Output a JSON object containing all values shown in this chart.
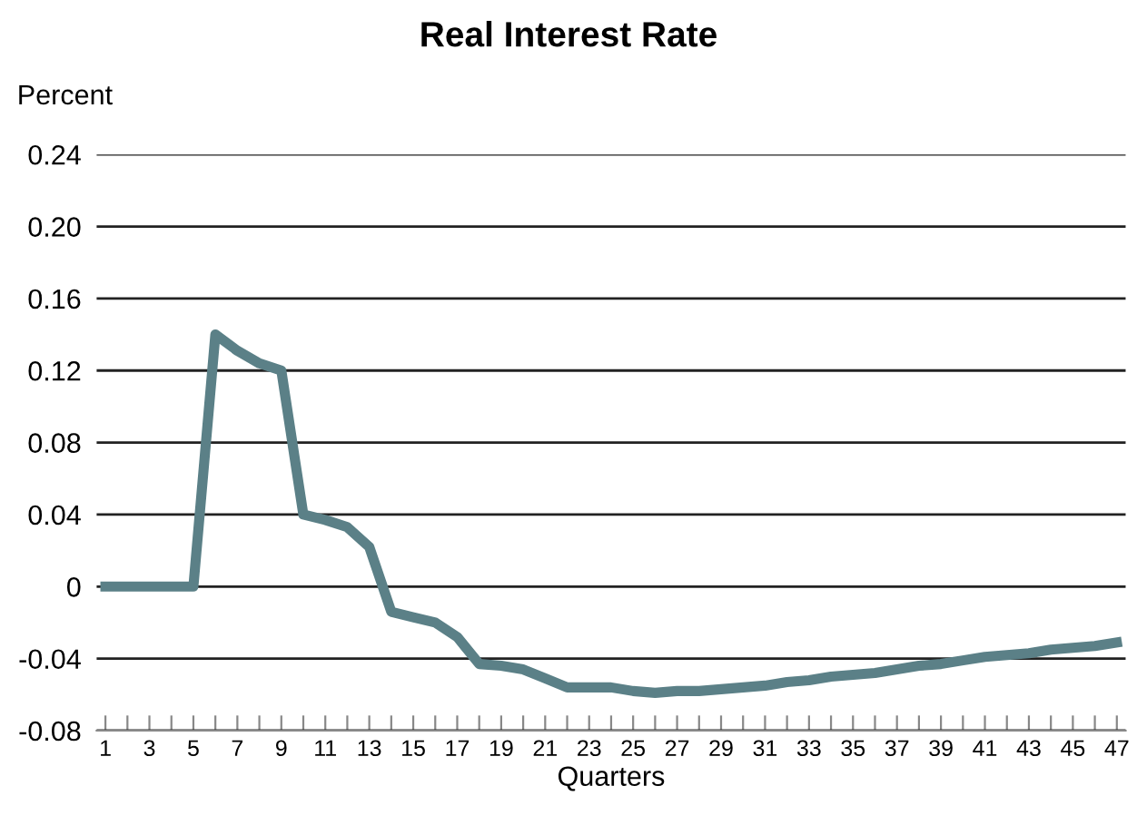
{
  "chart_data": {
    "type": "line",
    "title": "Real Interest Rate",
    "xlabel": "Quarters",
    "ylabel": "Percent",
    "x": [
      1,
      2,
      3,
      4,
      5,
      6,
      7,
      8,
      9,
      10,
      11,
      12,
      13,
      14,
      15,
      16,
      17,
      18,
      19,
      20,
      21,
      22,
      23,
      24,
      25,
      26,
      27,
      28,
      29,
      30,
      31,
      32,
      33,
      34,
      35,
      36,
      37,
      38,
      39,
      40,
      41,
      42,
      43,
      44,
      45,
      46,
      47
    ],
    "series": [
      {
        "color": "#5b8087",
        "values": [
          0,
          0,
          0,
          0,
          0,
          0.14,
          0.131,
          0.124,
          0.12,
          0.04,
          0.037,
          0.033,
          0.022,
          -0.014,
          -0.017,
          -0.02,
          -0.028,
          -0.043,
          -0.044,
          -0.046,
          -0.051,
          -0.056,
          -0.056,
          -0.056,
          -0.058,
          -0.059,
          -0.058,
          -0.058,
          -0.057,
          -0.056,
          -0.055,
          -0.053,
          -0.052,
          -0.05,
          -0.049,
          -0.048,
          -0.046,
          -0.044,
          -0.043,
          -0.041,
          -0.039,
          -0.038,
          -0.037,
          -0.035,
          -0.034,
          -0.033,
          -0.031
        ]
      }
    ],
    "xlim": [
      0.6,
      47.4
    ],
    "ylim": [
      -0.08,
      0.24
    ],
    "xticks": [
      1,
      {
        "value": 2,
        "label": null
      },
      3,
      {
        "value": 4,
        "label": null
      },
      5,
      {
        "value": 6,
        "label": null
      },
      7,
      {
        "value": 8,
        "label": null
      },
      9,
      {
        "value": 10,
        "label": null
      },
      11,
      {
        "value": 12,
        "label": null
      },
      13,
      {
        "value": 14,
        "label": null
      },
      15,
      {
        "value": 16,
        "label": null
      },
      17,
      {
        "value": 18,
        "label": null
      },
      19,
      {
        "value": 20,
        "label": null
      },
      21,
      {
        "value": 22,
        "label": null
      },
      23,
      {
        "value": 24,
        "label": null
      },
      25,
      {
        "value": 26,
        "label": null
      },
      27,
      {
        "value": 28,
        "label": null
      },
      29,
      {
        "value": 30,
        "label": null
      },
      31,
      {
        "value": 32,
        "label": null
      },
      33,
      {
        "value": 34,
        "label": null
      },
      35,
      {
        "value": 36,
        "label": null
      },
      37,
      {
        "value": 38,
        "label": null
      },
      39,
      {
        "value": 40,
        "label": null
      },
      41,
      {
        "value": 42,
        "label": null
      },
      43,
      {
        "value": 44,
        "label": null
      },
      45,
      {
        "value": 46,
        "label": null
      },
      47
    ],
    "yticks": [
      {
        "value": -0.08,
        "label": "-0.08"
      },
      {
        "value": -0.04,
        "label": "-0.04"
      },
      0,
      {
        "value": 0.04,
        "label": "0.04"
      },
      {
        "value": 0.08,
        "label": "0.08"
      },
      {
        "value": 0.12,
        "label": "0.12"
      },
      {
        "value": 0.16,
        "label": "0.16"
      },
      {
        "value": 0.2,
        "label": "0.20"
      },
      {
        "value": 0.24,
        "label": "0.24"
      }
    ],
    "grid": "y",
    "marker": "none",
    "line_style": "solid",
    "legend": false
  }
}
